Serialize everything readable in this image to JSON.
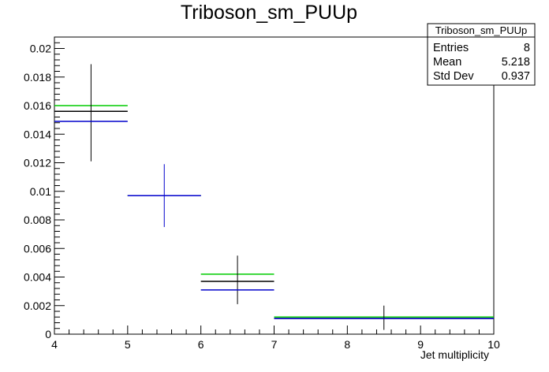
{
  "chart_data": {
    "type": "histogram-errorbars",
    "title": "Triboson_sm_PUUp",
    "xlabel": "Jet multiplicity",
    "ylabel": "",
    "xlim": [
      4,
      10
    ],
    "ylim": [
      0,
      0.0208
    ],
    "x_ticks": [
      {
        "v": 4,
        "label": "4"
      },
      {
        "v": 5,
        "label": "5"
      },
      {
        "v": 6,
        "label": "6"
      },
      {
        "v": 7,
        "label": "7"
      },
      {
        "v": 8,
        "label": "8"
      },
      {
        "v": 9,
        "label": "9"
      },
      {
        "v": 10,
        "label": "10"
      }
    ],
    "y_ticks": [
      {
        "v": 0,
        "label": "0"
      },
      {
        "v": 0.002,
        "label": "0.002"
      },
      {
        "v": 0.004,
        "label": "0.004"
      },
      {
        "v": 0.006,
        "label": "0.006"
      },
      {
        "v": 0.008,
        "label": "0.008"
      },
      {
        "v": 0.01,
        "label": "0.01"
      },
      {
        "v": 0.012,
        "label": "0.012"
      },
      {
        "v": 0.014,
        "label": "0.014"
      },
      {
        "v": 0.016,
        "label": "0.016"
      },
      {
        "v": 0.018,
        "label": "0.018"
      },
      {
        "v": 0.02,
        "label": "0.02"
      }
    ],
    "series": [
      {
        "color": "#00cc00",
        "points": [
          {
            "x0": 4,
            "x1": 5,
            "xc": 4.5,
            "y": 0.016
          },
          {
            "x0": 5,
            "x1": 6,
            "xc": 5.5,
            "y": 0.0097
          },
          {
            "x0": 6,
            "x1": 7,
            "xc": 6.5,
            "y": 0.0042
          },
          {
            "x0": 7,
            "x1": 10,
            "xc": 8.5,
            "y": 0.0012
          }
        ]
      },
      {
        "color": "#000000",
        "points": [
          {
            "x0": 4,
            "x1": 5,
            "xc": 4.5,
            "y": 0.0156,
            "ylo": 0.0121,
            "yhi": 0.0189
          },
          {
            "x0": 5,
            "x1": 6,
            "xc": 5.5,
            "y": 0.0097
          },
          {
            "x0": 6,
            "x1": 7,
            "xc": 6.5,
            "y": 0.0037,
            "ylo": 0.0021,
            "yhi": 0.0055
          },
          {
            "x0": 7,
            "x1": 10,
            "xc": 8.5,
            "y": 0.0011,
            "ylo": 0.0003,
            "yhi": 0.002
          }
        ]
      },
      {
        "color": "#0000cc",
        "points": [
          {
            "x0": 4,
            "x1": 5,
            "xc": 4.5,
            "y": 0.0149
          },
          {
            "x0": 5,
            "x1": 6,
            "xc": 5.5,
            "y": 0.0097,
            "ylo": 0.0075,
            "yhi": 0.0119
          },
          {
            "x0": 6,
            "x1": 7,
            "xc": 6.5,
            "y": 0.0031
          },
          {
            "x0": 7,
            "x1": 10,
            "xc": 8.5,
            "y": 0.0011
          }
        ]
      }
    ],
    "stats": {
      "name": "Triboson_sm_PUUp",
      "rows": [
        {
          "label": "Entries",
          "value": "8"
        },
        {
          "label": "Mean",
          "value": "5.218"
        },
        {
          "label": "Std Dev",
          "value": "0.937"
        }
      ]
    }
  }
}
